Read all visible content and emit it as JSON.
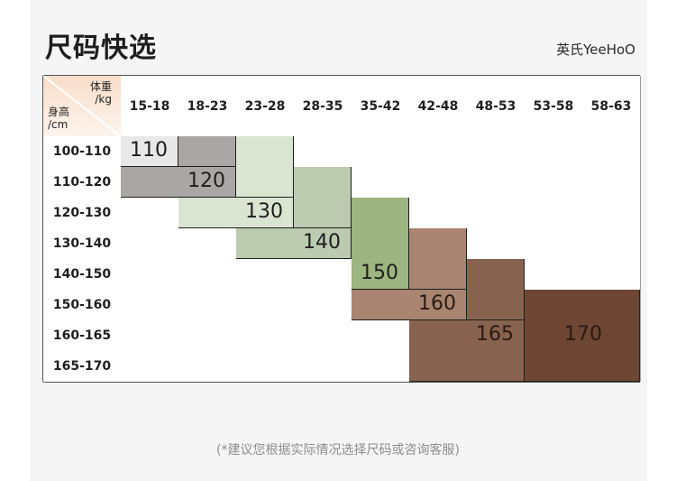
{
  "title": "尺码快选",
  "brand": "英氏YeeHoO",
  "corner": {
    "weight_label": "体重",
    "weight_unit": "/kg",
    "height_label": "身高",
    "height_unit": "/cm"
  },
  "weight_columns": [
    "15-18",
    "18-23",
    "23-28",
    "28-35",
    "35-42",
    "42-48",
    "48-53",
    "53-58",
    "58-63"
  ],
  "height_rows": [
    "100-110",
    "110-120",
    "120-130",
    "130-140",
    "140-150",
    "150-160",
    "160-165",
    "165-170"
  ],
  "sizes": [
    {
      "label": "110",
      "color": "#e8e8e8"
    },
    {
      "label": "120",
      "color": "#aaa6a5"
    },
    {
      "label": "130",
      "color": "#dae5d1"
    },
    {
      "label": "140",
      "color": "#bccbb0"
    },
    {
      "label": "150",
      "color": "#9db580"
    },
    {
      "label": "160",
      "color": "#a88471"
    },
    {
      "label": "165",
      "color": "#87634f"
    },
    {
      "label": "170",
      "color": "#6d4634"
    }
  ],
  "footnote": "(*建议您根据实际情况选择尺码或咨询客服)"
}
